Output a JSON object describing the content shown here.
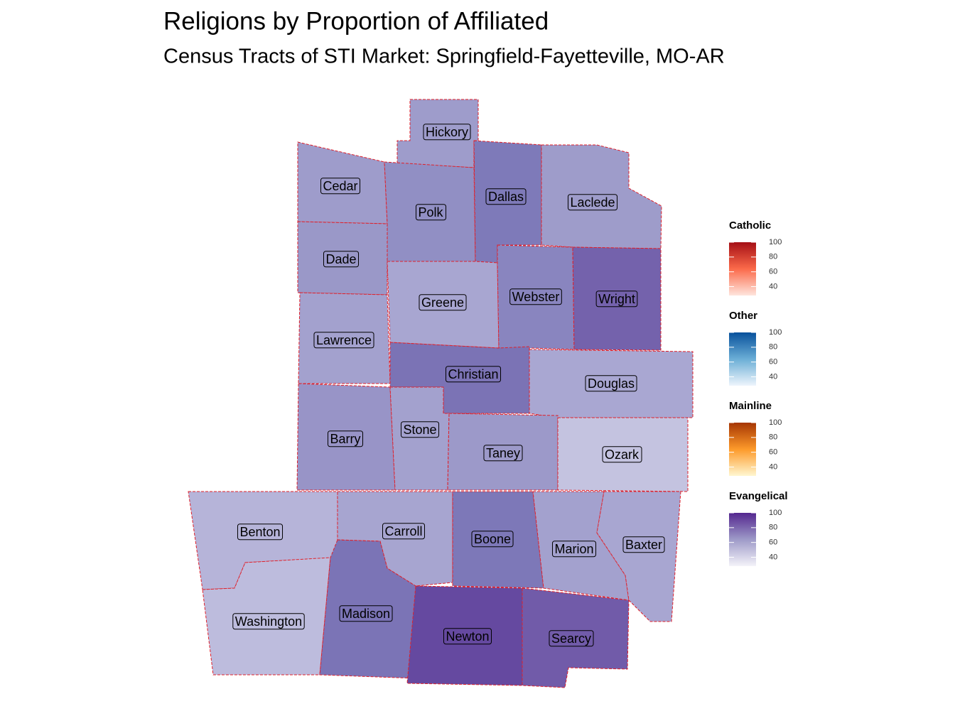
{
  "title": "Religions by Proportion of Affiliated",
  "subtitle": "Census Tracts of STI Market: Springfield-Fayetteville, MO-AR",
  "counties": [
    {
      "name": "Hickory",
      "color": "#9e9ccb"
    },
    {
      "name": "Cedar",
      "color": "#9e9ccb"
    },
    {
      "name": "Polk",
      "color": "#918fc4"
    },
    {
      "name": "Dallas",
      "color": "#7e7ab9"
    },
    {
      "name": "Laclede",
      "color": "#9e9cca"
    },
    {
      "name": "Dade",
      "color": "#9a98c8"
    },
    {
      "name": "Greene",
      "color": "#a8a6d1"
    },
    {
      "name": "Webster",
      "color": "#8985bf"
    },
    {
      "name": "Wright",
      "color": "#7462ac"
    },
    {
      "name": "Lawrence",
      "color": "#a3a1ce"
    },
    {
      "name": "Christian",
      "color": "#7b73b5"
    },
    {
      "name": "Douglas",
      "color": "#a9a7d2"
    },
    {
      "name": "Barry",
      "color": "#9894c7"
    },
    {
      "name": "Stone",
      "color": "#a3a1ce"
    },
    {
      "name": "Taney",
      "color": "#9c99c9"
    },
    {
      "name": "Ozark",
      "color": "#c4c3e0"
    },
    {
      "name": "Benton",
      "color": "#b6b4d9"
    },
    {
      "name": "Washington",
      "color": "#bdbcdd"
    },
    {
      "name": "Carroll",
      "color": "#a7a5d0"
    },
    {
      "name": "Madison",
      "color": "#7b74b6"
    },
    {
      "name": "Boone",
      "color": "#7d78b8"
    },
    {
      "name": "Newton",
      "color": "#6549a0"
    },
    {
      "name": "Marion",
      "color": "#a3a1ce"
    },
    {
      "name": "Baxter",
      "color": "#a8a6d1"
    },
    {
      "name": "Searcy",
      "color": "#715ba9"
    }
  ],
  "legend": [
    {
      "title": "Catholic",
      "colors": [
        "#fee5dd",
        "#fb6a4a",
        "#a50f15"
      ],
      "lim": [
        28,
        100
      ],
      "ticks": [
        40,
        60,
        80,
        100
      ]
    },
    {
      "title": "Other",
      "colors": [
        "#eef5fc",
        "#6baed6",
        "#08519c"
      ],
      "lim": [
        28,
        100
      ],
      "ticks": [
        40,
        60,
        80,
        100
      ]
    },
    {
      "title": "Mainline",
      "colors": [
        "#fff7d0",
        "#fd9a2a",
        "#a63603"
      ],
      "lim": [
        28,
        100
      ],
      "ticks": [
        40,
        60,
        80,
        100
      ]
    },
    {
      "title": "Evangelical",
      "colors": [
        "#f4f3f9",
        "#9e9ac8",
        "#54278f"
      ],
      "lim": [
        28,
        100
      ],
      "ticks": [
        40,
        60,
        80,
        100
      ]
    }
  ]
}
